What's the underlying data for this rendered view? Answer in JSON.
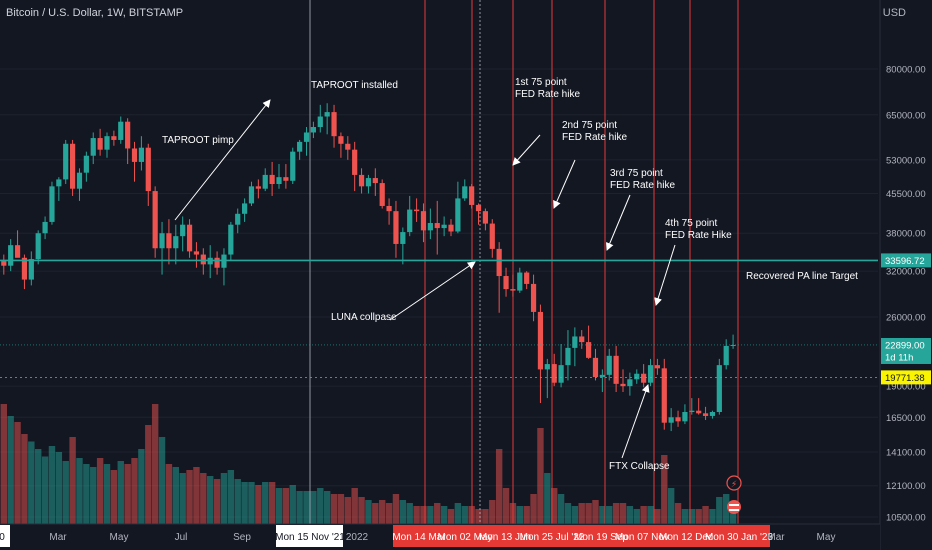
{
  "header": {
    "title": "Bitcoin / U.S. Dollar, 1W, BITSTAMP",
    "currency": "USD"
  },
  "chart_data": {
    "type": "candlestick",
    "symbol": "BTCUSD",
    "interval": "1W",
    "exchange": "BITSTAMP",
    "y_scale": "log",
    "ylim": [
      10000,
      105000
    ],
    "y_ticks": [
      "80000.00",
      "65000.00",
      "53000.00",
      "45500.00",
      "38000.00",
      "32000.00",
      "26000.00",
      "19000.00",
      "16500.00",
      "14100.00",
      "12100.00",
      "10500.00"
    ],
    "x_tick_labels": [
      "0",
      "Mar",
      "May",
      "Jul",
      "Sep",
      "Mon 15 Nov '21",
      "2022",
      "Mon 14 Mar",
      "Mon 02 May",
      "Mon 13 Jun",
      "Mon 25 Jul '22",
      "Mon 19 Sep",
      "Mon 07 Nov",
      "Mon 12 Dec",
      "Mon 30 Jan '23",
      "Mar",
      "May"
    ],
    "price_labels": {
      "support": "33596.72",
      "last": "22899.00",
      "countdown": "1d 11h",
      "crosshair": "19771.38"
    },
    "horizontal_line": {
      "value": 33596.72,
      "color": "#26a69a",
      "label": "Recovered PA line Target"
    },
    "annotations": [
      {
        "text": "TAPROOT installed"
      },
      {
        "text": "TAPROOT pimp"
      },
      {
        "text": "1st 75 point\nFED Rate hike"
      },
      {
        "text": "2nd 75 point\nFED Rate hike"
      },
      {
        "text": "3rd 75 point\nFED Rate hike"
      },
      {
        "text": "4th 75 point\nFED Rate Hike"
      },
      {
        "text": "LUNA collpase"
      },
      {
        "text": "FTX Collapse"
      }
    ],
    "ohlc_weekly": [
      [
        33500,
        34500,
        31500,
        32800
      ],
      [
        32800,
        37000,
        32000,
        36000
      ],
      [
        36000,
        38500,
        35500,
        34000
      ],
      [
        34000,
        34500,
        29500,
        30800
      ],
      [
        30800,
        35000,
        30000,
        33800
      ],
      [
        33800,
        38500,
        33000,
        38000
      ],
      [
        38000,
        41000,
        37000,
        40000
      ],
      [
        40000,
        48000,
        39500,
        47000
      ],
      [
        47000,
        49000,
        44000,
        48500
      ],
      [
        48500,
        58000,
        47500,
        57000
      ],
      [
        57000,
        58000,
        45000,
        46500
      ],
      [
        46500,
        51000,
        44000,
        50000
      ],
      [
        50000,
        55000,
        48000,
        54000
      ],
      [
        54000,
        60000,
        52000,
        58500
      ],
      [
        58500,
        61000,
        54000,
        55500
      ],
      [
        55500,
        60000,
        53500,
        59000
      ],
      [
        59000,
        60500,
        56500,
        58000
      ],
      [
        58000,
        64500,
        57000,
        63000
      ],
      [
        63000,
        64000,
        52000,
        55800
      ],
      [
        55800,
        57500,
        48000,
        52500
      ],
      [
        52500,
        59000,
        50500,
        56000
      ],
      [
        56000,
        57000,
        43000,
        46000
      ],
      [
        46000,
        47000,
        34000,
        35500
      ],
      [
        35500,
        40000,
        31500,
        38000
      ],
      [
        38000,
        40500,
        33000,
        35500
      ],
      [
        35500,
        39500,
        33000,
        37500
      ],
      [
        37500,
        41000,
        35000,
        39500
      ],
      [
        39500,
        40500,
        34000,
        35000
      ],
      [
        35000,
        36500,
        32500,
        34500
      ],
      [
        34500,
        35500,
        31500,
        33000
      ],
      [
        33000,
        36000,
        31000,
        34000
      ],
      [
        34000,
        35000,
        31500,
        32500
      ],
      [
        32500,
        35500,
        30000,
        34500
      ],
      [
        34500,
        40000,
        33500,
        39500
      ],
      [
        39500,
        42500,
        38000,
        41500
      ],
      [
        41500,
        44500,
        40000,
        43500
      ],
      [
        43500,
        48000,
        43000,
        47000
      ],
      [
        47000,
        48500,
        44500,
        46500
      ],
      [
        46500,
        51000,
        46000,
        49500
      ],
      [
        49500,
        52500,
        45000,
        47500
      ],
      [
        47500,
        52000,
        46500,
        49000
      ],
      [
        49000,
        52000,
        46500,
        48200
      ],
      [
        48200,
        56000,
        47500,
        55000
      ],
      [
        55000,
        58000,
        53000,
        57500
      ],
      [
        57500,
        61500,
        54000,
        60000
      ],
      [
        60000,
        63000,
        58500,
        61500
      ],
      [
        61500,
        68000,
        60000,
        64500
      ],
      [
        64500,
        68500,
        59500,
        65800
      ],
      [
        65800,
        68000,
        56000,
        59000
      ],
      [
        59000,
        60000,
        53500,
        57000
      ],
      [
        57000,
        59000,
        53000,
        55500
      ],
      [
        55500,
        57500,
        46000,
        49500
      ],
      [
        49500,
        51000,
        45500,
        47000
      ],
      [
        47000,
        49500,
        45500,
        48800
      ],
      [
        48800,
        51000,
        45000,
        47700
      ],
      [
        47700,
        48500,
        42500,
        43000
      ],
      [
        43000,
        44500,
        39500,
        42000
      ],
      [
        42000,
        44000,
        34000,
        36200
      ],
      [
        36200,
        39000,
        33000,
        38200
      ],
      [
        38200,
        45000,
        37500,
        42300
      ],
      [
        42300,
        44500,
        40000,
        42000
      ],
      [
        42000,
        43500,
        36500,
        38500
      ],
      [
        38500,
        42500,
        37000,
        39800
      ],
      [
        39800,
        44000,
        34500,
        38900
      ],
      [
        38900,
        41000,
        37500,
        39500
      ],
      [
        39500,
        40500,
        37500,
        38300
      ],
      [
        38300,
        48000,
        38000,
        44500
      ],
      [
        44500,
        48500,
        44000,
        47000
      ],
      [
        47000,
        47500,
        42500,
        43200
      ],
      [
        43200,
        43500,
        39500,
        42000
      ],
      [
        42000,
        42500,
        38500,
        39700
      ],
      [
        39700,
        40500,
        34000,
        35400
      ],
      [
        35400,
        36500,
        26500,
        31300
      ],
      [
        31300,
        32500,
        28500,
        29500
      ],
      [
        29500,
        31500,
        28500,
        29300
      ],
      [
        29300,
        32500,
        29000,
        31800
      ],
      [
        31800,
        32000,
        29500,
        30200
      ],
      [
        30200,
        31500,
        25500,
        26600
      ],
      [
        26600,
        27500,
        17600,
        20500
      ],
      [
        20500,
        21500,
        18000,
        21000
      ],
      [
        21000,
        22000,
        19000,
        19300
      ],
      [
        19300,
        23000,
        18900,
        20900
      ],
      [
        20900,
        24500,
        19500,
        22600
      ],
      [
        22600,
        24800,
        20800,
        23800
      ],
      [
        23800,
        24500,
        22500,
        23200
      ],
      [
        23200,
        25000,
        21500,
        21600
      ],
      [
        21600,
        22500,
        19500,
        19800
      ],
      [
        19800,
        20500,
        18500,
        20000
      ],
      [
        20000,
        22500,
        19500,
        21800
      ],
      [
        21800,
        22800,
        18500,
        19200
      ],
      [
        19200,
        20500,
        18500,
        19000
      ],
      [
        19000,
        20200,
        18200,
        19600
      ],
      [
        19600,
        20500,
        19200,
        20100
      ],
      [
        20100,
        21000,
        18900,
        19300
      ],
      [
        19300,
        21500,
        19000,
        20900
      ],
      [
        20900,
        21500,
        20000,
        20600
      ],
      [
        20600,
        21500,
        15600,
        16100
      ],
      [
        16100,
        17200,
        15500,
        16500
      ],
      [
        16500,
        17000,
        15800,
        16200
      ],
      [
        16200,
        17500,
        16000,
        16900
      ],
      [
        16900,
        18000,
        16700,
        17000
      ],
      [
        17000,
        18000,
        16700,
        16800
      ],
      [
        16800,
        17300,
        16300,
        16600
      ],
      [
        16600,
        17000,
        16400,
        16900
      ],
      [
        16900,
        21500,
        16700,
        20900
      ],
      [
        20900,
        23500,
        20500,
        22800
      ],
      [
        22800,
        24000,
        22500,
        22899
      ]
    ],
    "volume_weekly": [
      0.8,
      0.72,
      0.68,
      0.6,
      0.55,
      0.5,
      0.45,
      0.52,
      0.48,
      0.42,
      0.58,
      0.44,
      0.4,
      0.38,
      0.44,
      0.4,
      0.36,
      0.42,
      0.4,
      0.44,
      0.5,
      0.66,
      0.8,
      0.58,
      0.4,
      0.38,
      0.34,
      0.36,
      0.38,
      0.34,
      0.32,
      0.3,
      0.34,
      0.36,
      0.3,
      0.28,
      0.28,
      0.26,
      0.28,
      0.28,
      0.24,
      0.24,
      0.26,
      0.22,
      0.22,
      0.22,
      0.24,
      0.22,
      0.2,
      0.2,
      0.18,
      0.24,
      0.18,
      0.16,
      0.14,
      0.16,
      0.14,
      0.2,
      0.16,
      0.14,
      0.12,
      0.12,
      0.12,
      0.14,
      0.12,
      0.1,
      0.14,
      0.12,
      0.12,
      0.1,
      0.1,
      0.16,
      0.5,
      0.24,
      0.14,
      0.12,
      0.12,
      0.2,
      0.64,
      0.34,
      0.24,
      0.2,
      0.14,
      0.12,
      0.14,
      0.14,
      0.16,
      0.12,
      0.12,
      0.14,
      0.14,
      0.12,
      0.1,
      0.12,
      0.12,
      0.1,
      0.46,
      0.24,
      0.14,
      0.1,
      0.1,
      0.1,
      0.12,
      0.1,
      0.18,
      0.2,
      0.14
    ]
  }
}
